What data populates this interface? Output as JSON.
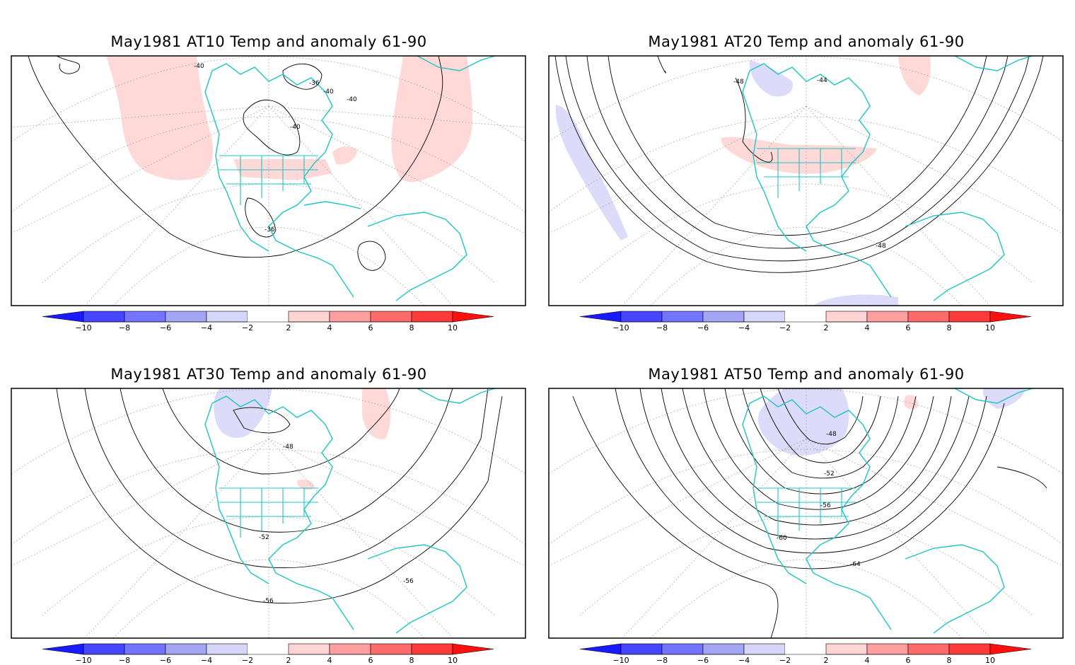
{
  "panels": [
    {
      "title": "May1981 AT10 Temp and anomaly 61-90",
      "contour_labels": [
        "-40",
        "-36",
        "-40",
        "-40",
        "-40",
        "-36"
      ],
      "colorbar_ticks": [
        "-10",
        "-8",
        "-6",
        "-4",
        "-2",
        "2",
        "4",
        "6",
        "8",
        "10"
      ]
    },
    {
      "title": "May1981 AT20 Temp and anomaly 61-90",
      "contour_labels": [
        "-48",
        "-44",
        "-48"
      ],
      "colorbar_ticks": [
        "-10",
        "-8",
        "-6",
        "-4",
        "-2",
        "2",
        "4",
        "6",
        "8",
        "10"
      ]
    },
    {
      "title": "May1981 AT30 Temp and anomaly 61-90",
      "contour_labels": [
        "-48",
        "-52",
        "-56",
        "-56"
      ],
      "colorbar_ticks": [
        "-10",
        "-8",
        "-6",
        "-4",
        "-2",
        "2",
        "4",
        "6",
        "8",
        "10"
      ]
    },
    {
      "title": "May1981 AT50 Temp and anomaly 61-90",
      "contour_labels": [
        "-48",
        "-52",
        "-56",
        "-60",
        "-64"
      ],
      "colorbar_ticks": [
        "-10",
        "-8",
        "-6",
        "-4",
        "-2",
        "2",
        "4",
        "6",
        "8",
        "10"
      ]
    }
  ],
  "colorbar": {
    "colors": [
      "#1a1aff",
      "#4646ff",
      "#7474ff",
      "#a4a4f5",
      "#d6d6fa",
      "#ffffff",
      "#ffd4d4",
      "#ff9e9e",
      "#ff6b6b",
      "#ff3a3a",
      "#ff1010"
    ],
    "neg_end_color": "#1a1aff",
    "pos_end_color": "#ff1010"
  },
  "colors": {
    "coast": "#1fc4c4",
    "anomaly_positive": "#ffd8d8",
    "anomaly_negative": "#dcdcfa"
  }
}
